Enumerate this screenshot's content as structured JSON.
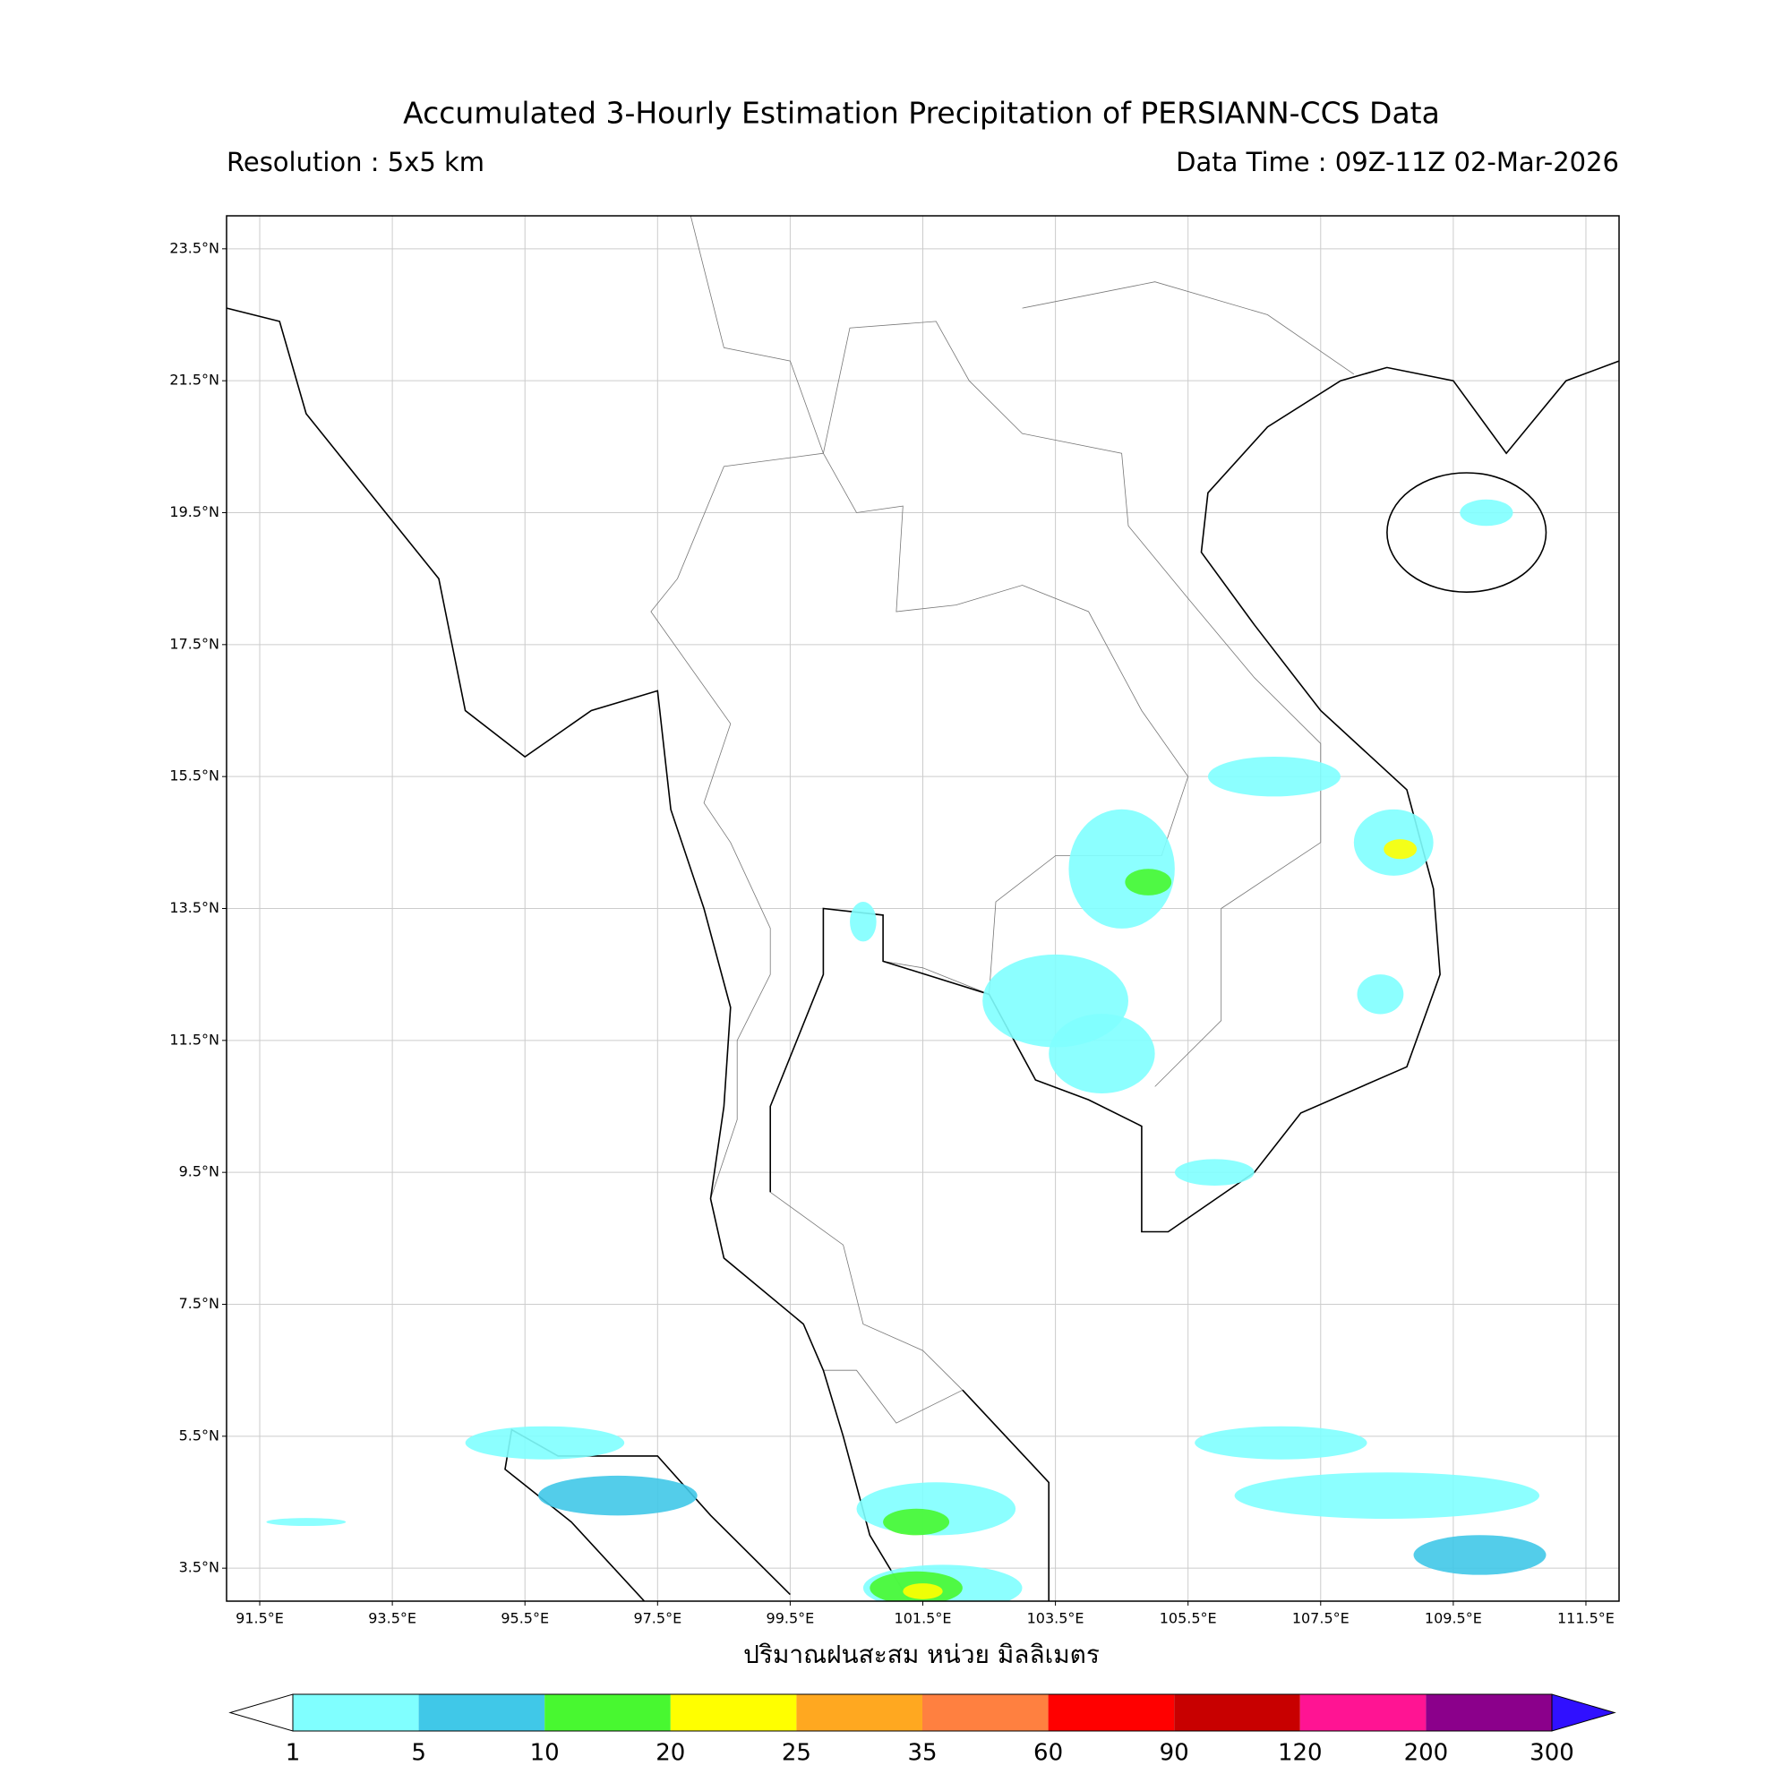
{
  "title": "Accumulated 3-Hourly Estimation Precipitation of PERSIANN-CCS Data",
  "resolution": "Resolution : 5x5 km",
  "data_time": "Data Time : 09Z-11Z 02-Mar-2026",
  "map": {
    "lon_range": [
      91,
      112
    ],
    "lat_range": [
      3,
      24
    ],
    "grid": true,
    "lat_ticks": [
      {
        "value": 23.5,
        "label": "23.5°N"
      },
      {
        "value": 21.5,
        "label": "21.5°N"
      },
      {
        "value": 19.5,
        "label": "19.5°N"
      },
      {
        "value": 17.5,
        "label": "17.5°N"
      },
      {
        "value": 15.5,
        "label": "15.5°N"
      },
      {
        "value": 13.5,
        "label": "13.5°N"
      },
      {
        "value": 11.5,
        "label": "11.5°N"
      },
      {
        "value": 9.5,
        "label": "9.5°N"
      },
      {
        "value": 7.5,
        "label": "7.5°N"
      },
      {
        "value": 5.5,
        "label": "5.5°N"
      },
      {
        "value": 3.5,
        "label": "3.5°N"
      }
    ],
    "lon_ticks": [
      {
        "value": 91.5,
        "label": "91.5°E"
      },
      {
        "value": 93.5,
        "label": "93.5°E"
      },
      {
        "value": 95.5,
        "label": "95.5°E"
      },
      {
        "value": 97.5,
        "label": "97.5°E"
      },
      {
        "value": 99.5,
        "label": "99.5°E"
      },
      {
        "value": 101.5,
        "label": "101.5°E"
      },
      {
        "value": 103.5,
        "label": "103.5°E"
      },
      {
        "value": 105.5,
        "label": "105.5°E"
      },
      {
        "value": 107.5,
        "label": "107.5°E"
      },
      {
        "value": 109.5,
        "label": "109.5°E"
      },
      {
        "value": 111.5,
        "label": "111.5°E"
      }
    ]
  },
  "x_label": "ปริมาณฝนสะสม หน่วย มิลลิเมตร",
  "colorbar": {
    "levels": [
      1,
      5,
      10,
      20,
      25,
      35,
      60,
      90,
      120,
      200,
      300
    ],
    "colors": [
      "#80ffff",
      "#40c8e8",
      "#48f830",
      "#ffff00",
      "#ffa820",
      "#ff8040",
      "#ff0000",
      "#c80000",
      "#ff1493",
      "#8b008b"
    ],
    "under_color": "#ffffff",
    "over_color": "#3010ff"
  }
}
